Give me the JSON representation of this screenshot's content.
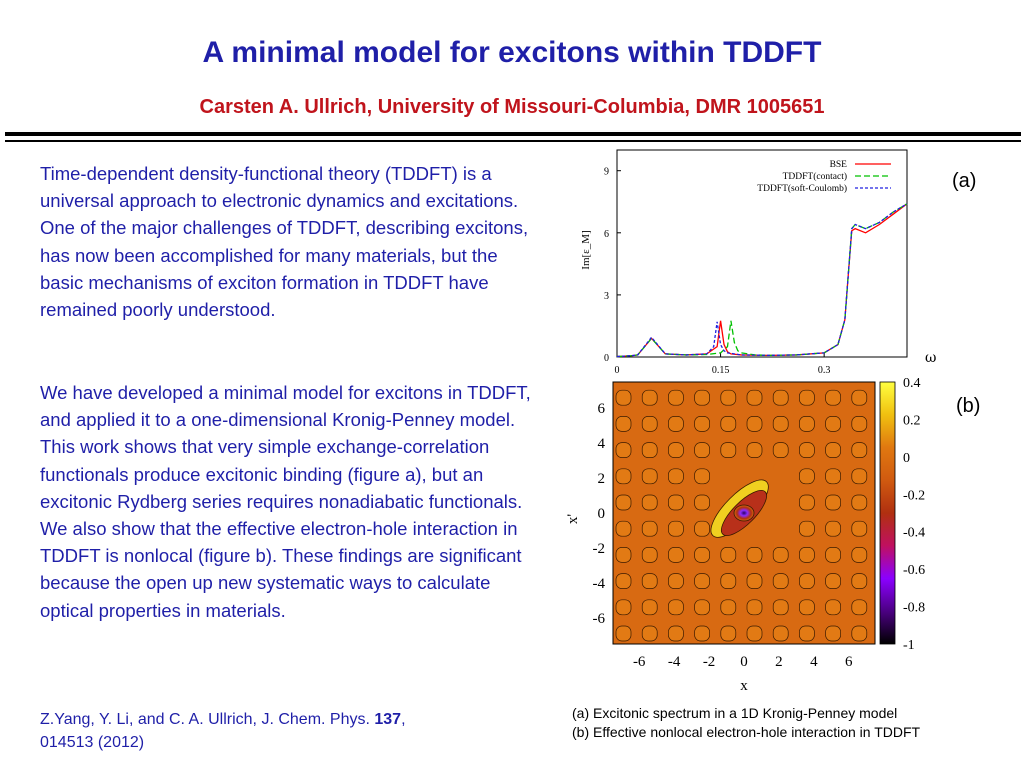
{
  "slide": {
    "title": "A minimal model for excitons within TDDFT",
    "subtitle": "Carsten A. Ullrich, University of Missouri-Columbia, DMR 1005651",
    "paragraph1": "Time-dependent  density-functional theory (TDDFT) is a universal approach to electronic dynamics and excitations. One of the major challenges of TDDFT, describing excitons, has now been accomplished for many materials, but the basic mechanisms of exciton formation in TDDFT have remained poorly understood.",
    "paragraph2": "We have developed a minimal model for excitons in TDDFT, and applied it to a one-dimensional Kronig-Penney model. This work shows that very simple exchange-correlation functionals produce excitonic binding (figure a), but an excitonic Rydberg series requires nonadiabatic functionals. We also show that the effective electron-hole interaction in TDDFT is nonlocal (figure b). These findings are significant because the open up new systematic ways to calculate optical properties in materials.",
    "citation_prefix": "Z.Yang, Y. Li, and C. A. Ullrich, J. Chem. Phys. ",
    "citation_volume": "137",
    "citation_suffix": ",",
    "citation_line2": "014513 (2012)",
    "caption_a": "(a) Excitonic spectrum in a 1D Kronig-Penney model",
    "caption_b": "(b) Effective nonlocal electron-hole interaction in TDDFT",
    "label_a": "(a)",
    "label_b": "(b)",
    "omega_label": "ω",
    "colors": {
      "title": "#1f1fa8",
      "subtitle": "#c0141c",
      "body_text": "#1f1fa8"
    }
  },
  "chart_data": [
    {
      "type": "line",
      "ylabel": "Im[ε_M]",
      "xlabel": "ω",
      "xlim": [
        0,
        0.42
      ],
      "ylim": [
        0,
        10
      ],
      "xticks": [
        0,
        0.15,
        0.3
      ],
      "yticks": [
        0,
        3,
        6,
        9
      ],
      "legend_position": "top-right",
      "series": [
        {
          "name": "BSE",
          "color": "#ff0000",
          "dash": "solid",
          "x": [
            0.0,
            0.02,
            0.03,
            0.05,
            0.07,
            0.1,
            0.13,
            0.145,
            0.15,
            0.155,
            0.16,
            0.165,
            0.18,
            0.22,
            0.26,
            0.3,
            0.32,
            0.33,
            0.335,
            0.34,
            0.345,
            0.36,
            0.38,
            0.4,
            0.42
          ],
          "y": [
            0.02,
            0.06,
            0.1,
            0.9,
            0.15,
            0.1,
            0.15,
            0.5,
            1.75,
            0.6,
            0.25,
            0.15,
            0.1,
            0.08,
            0.1,
            0.2,
            0.6,
            1.8,
            4.0,
            6.1,
            6.2,
            6.0,
            6.4,
            6.9,
            7.4
          ]
        },
        {
          "name": "TDDFT(contact)",
          "color": "#00c000",
          "dash": "dashed",
          "x": [
            0.0,
            0.02,
            0.03,
            0.05,
            0.07,
            0.1,
            0.13,
            0.15,
            0.16,
            0.165,
            0.17,
            0.175,
            0.18,
            0.2,
            0.22,
            0.26,
            0.3,
            0.32,
            0.33,
            0.335,
            0.34,
            0.345,
            0.36,
            0.38,
            0.4,
            0.42
          ],
          "y": [
            0.02,
            0.06,
            0.1,
            0.9,
            0.15,
            0.1,
            0.12,
            0.2,
            0.5,
            1.75,
            0.7,
            0.3,
            0.2,
            0.1,
            0.08,
            0.1,
            0.2,
            0.6,
            1.8,
            4.0,
            6.2,
            6.4,
            6.2,
            6.5,
            7.0,
            7.4
          ]
        },
        {
          "name": "TDDFT(soft-Coulomb)",
          "color": "#2020e0",
          "dash": "dotted",
          "x": [
            0.0,
            0.02,
            0.03,
            0.05,
            0.07,
            0.1,
            0.13,
            0.14,
            0.145,
            0.15,
            0.155,
            0.16,
            0.18,
            0.22,
            0.26,
            0.3,
            0.32,
            0.33,
            0.335,
            0.34,
            0.345,
            0.36,
            0.38,
            0.4,
            0.42
          ],
          "y": [
            0.02,
            0.06,
            0.1,
            0.95,
            0.15,
            0.1,
            0.15,
            0.5,
            1.7,
            0.6,
            0.3,
            0.2,
            0.1,
            0.08,
            0.1,
            0.2,
            0.6,
            1.8,
            4.0,
            6.2,
            6.4,
            6.2,
            6.5,
            7.0,
            7.4
          ]
        }
      ]
    },
    {
      "type": "heatmap",
      "xlabel": "x",
      "ylabel": "x'",
      "xlim": [
        -7.5,
        7.5
      ],
      "ylim": [
        -7.5,
        7.5
      ],
      "xticks": [
        -6,
        -4,
        -2,
        0,
        2,
        4,
        6
      ],
      "yticks": [
        -6,
        -4,
        -2,
        0,
        2,
        4,
        6
      ],
      "colorbar_ticks": [
        0.4,
        0.2,
        0,
        -0.2,
        -0.4,
        -0.6,
        -0.8,
        -1
      ],
      "colorbar_range": [
        -1,
        0.4
      ],
      "colorscale": [
        "#000000",
        "#4b0082",
        "#8b00ff",
        "#c01060",
        "#b03010",
        "#d05a10",
        "#e07810",
        "#f0c010",
        "#ffff40"
      ]
    }
  ]
}
